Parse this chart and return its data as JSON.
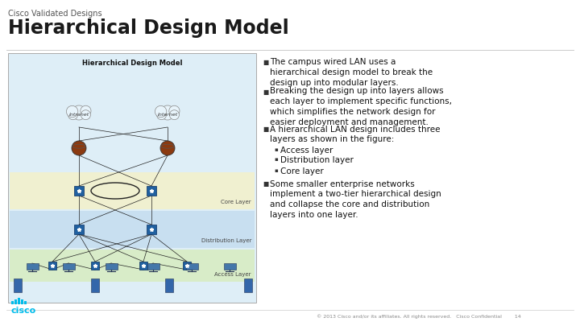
{
  "bg_color": "#ffffff",
  "top_label": "Cisco Validated Designs",
  "title": "Hierarchical Design Model",
  "title_color": "#1a1a1a",
  "top_label_color": "#555555",
  "bullet_char": "■",
  "sub_bullet_char": "▪",
  "bullet_points": [
    "The campus wired LAN uses a\nhierarchical design model to break the\ndesign up into modular layers.",
    "Breaking the design up into layers allows\neach layer to implement specific functions,\nwhich simplifies the network design for\neasier deployment and management.",
    "A hierarchical LAN design includes three\nlayers as shown in the figure:",
    "Some smaller enterprise networks\nimplement a two-tier hierarchical design\nand collapse the core and distribution\nlayers into one layer."
  ],
  "sub_bullets": [
    "Access layer",
    "Distribution layer",
    "Core layer"
  ],
  "footer_text": "© 2013 Cisco and/or its affiliates. All rights reserved.   Cisco Confidential        14",
  "cisco_logo_color": "#00bceb",
  "left_panel_bg": "#deeef7",
  "diagram_title": "Hierarchical Design Model",
  "core_layer_bg": "#f0f0d0",
  "dist_layer_bg": "#c8dff0",
  "access_layer_bg": "#d8ecc8",
  "layer_label_color": "#444444",
  "switch_color": "#2060a0",
  "router_color": "#8b3a10",
  "line_color": "#222222",
  "cloud_color": "#e8f4fb",
  "pc_color": "#4477aa",
  "panel_border": "#aaaaaa",
  "divider_color": "#cccccc",
  "footer_line_color": "#cccccc"
}
